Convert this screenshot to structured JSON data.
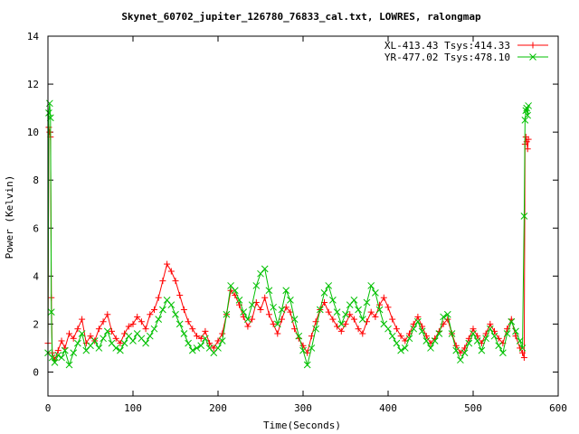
{
  "chart_data": {
    "type": "scatter",
    "title": "Skynet_60702_jupiter_126780_76833_cal.txt, LOWRES, ralongmap",
    "xlabel": "Time(Seconds)",
    "ylabel": "Power (Kelvin)",
    "xlim": [
      0,
      600
    ],
    "ylim": [
      -1,
      14
    ],
    "xticks": [
      "0",
      "100",
      "200",
      "300",
      "400",
      "500",
      "600"
    ],
    "yticks": [
      "0",
      "2",
      "4",
      "6",
      "8",
      "10",
      "12",
      "14"
    ],
    "xtick_values": [
      0,
      100,
      200,
      300,
      400,
      500,
      600
    ],
    "ytick_values": [
      0,
      2,
      4,
      6,
      8,
      10,
      12,
      14
    ],
    "grid": false,
    "legend_position": "top-right",
    "series": [
      {
        "name": "XL-413.43 Tsys:414.33",
        "marker": "plus",
        "color": "#ff0000",
        "x": [
          0,
          1,
          2,
          3,
          4,
          5,
          8,
          12,
          16,
          20,
          25,
          30,
          35,
          40,
          45,
          50,
          55,
          60,
          65,
          70,
          75,
          80,
          85,
          90,
          95,
          100,
          105,
          110,
          115,
          120,
          125,
          130,
          135,
          140,
          145,
          150,
          155,
          160,
          165,
          170,
          175,
          180,
          185,
          190,
          195,
          200,
          205,
          210,
          215,
          220,
          225,
          230,
          235,
          240,
          245,
          250,
          255,
          260,
          265,
          270,
          275,
          280,
          285,
          290,
          295,
          300,
          305,
          310,
          315,
          320,
          325,
          330,
          335,
          340,
          345,
          350,
          355,
          360,
          365,
          370,
          375,
          380,
          385,
          390,
          395,
          400,
          405,
          410,
          415,
          420,
          425,
          430,
          435,
          440,
          445,
          450,
          455,
          460,
          465,
          470,
          475,
          480,
          485,
          490,
          495,
          500,
          505,
          510,
          515,
          520,
          525,
          530,
          535,
          540,
          545,
          550,
          555,
          558,
          560,
          561,
          562,
          563,
          564,
          565
        ],
        "y": [
          1.2,
          10.2,
          10.0,
          9.8,
          3.1,
          0.8,
          0.5,
          0.9,
          1.3,
          1.0,
          1.6,
          1.4,
          1.8,
          2.2,
          1.2,
          1.5,
          1.3,
          1.8,
          2.1,
          2.4,
          1.7,
          1.4,
          1.2,
          1.6,
          1.9,
          2.0,
          2.3,
          2.1,
          1.8,
          2.4,
          2.6,
          3.1,
          3.8,
          4.5,
          4.2,
          3.8,
          3.2,
          2.6,
          2.1,
          1.8,
          1.5,
          1.4,
          1.7,
          1.2,
          1.0,
          1.3,
          1.6,
          2.4,
          3.4,
          3.2,
          2.8,
          2.3,
          1.9,
          2.2,
          2.9,
          2.6,
          3.1,
          2.4,
          2.0,
          1.6,
          2.2,
          2.7,
          2.5,
          1.8,
          1.4,
          1.1,
          0.8,
          1.5,
          2.1,
          2.6,
          2.9,
          2.5,
          2.2,
          1.9,
          1.7,
          2.0,
          2.4,
          2.2,
          1.8,
          1.6,
          2.1,
          2.5,
          2.3,
          2.8,
          3.1,
          2.7,
          2.2,
          1.8,
          1.5,
          1.3,
          1.6,
          2.0,
          2.3,
          1.9,
          1.5,
          1.2,
          1.4,
          1.7,
          2.0,
          2.2,
          1.6,
          1.1,
          0.8,
          1.0,
          1.4,
          1.8,
          1.5,
          1.2,
          1.6,
          2.0,
          1.7,
          1.4,
          1.2,
          1.8,
          2.2,
          1.5,
          1.0,
          0.8,
          0.6,
          9.5,
          9.8,
          9.6,
          9.3,
          9.7
        ]
      },
      {
        "name": "YR-477.02 Tsys:478.10",
        "marker": "cross",
        "color": "#00c000",
        "x": [
          0,
          1,
          2,
          3,
          4,
          5,
          8,
          12,
          16,
          20,
          25,
          30,
          35,
          40,
          45,
          50,
          55,
          60,
          65,
          70,
          75,
          80,
          85,
          90,
          95,
          100,
          105,
          110,
          115,
          120,
          125,
          130,
          135,
          140,
          145,
          150,
          155,
          160,
          165,
          170,
          175,
          180,
          185,
          190,
          195,
          200,
          205,
          210,
          215,
          220,
          225,
          230,
          235,
          240,
          245,
          250,
          255,
          260,
          265,
          270,
          275,
          280,
          285,
          290,
          295,
          300,
          305,
          310,
          315,
          320,
          325,
          330,
          335,
          340,
          345,
          350,
          355,
          360,
          365,
          370,
          375,
          380,
          385,
          390,
          395,
          400,
          405,
          410,
          415,
          420,
          425,
          430,
          435,
          440,
          445,
          450,
          455,
          460,
          465,
          470,
          475,
          480,
          485,
          490,
          495,
          500,
          505,
          510,
          515,
          520,
          525,
          530,
          535,
          540,
          545,
          550,
          555,
          558,
          560,
          561,
          562,
          563,
          564,
          565
        ],
        "y": [
          0.8,
          10.8,
          11.2,
          10.6,
          2.5,
          0.6,
          0.4,
          0.7,
          0.6,
          0.9,
          0.3,
          0.8,
          1.2,
          1.6,
          0.9,
          1.1,
          1.3,
          1.0,
          1.4,
          1.7,
          1.2,
          1.0,
          0.9,
          1.2,
          1.5,
          1.3,
          1.6,
          1.4,
          1.2,
          1.5,
          1.8,
          2.2,
          2.6,
          3.0,
          2.8,
          2.4,
          2.0,
          1.6,
          1.2,
          0.9,
          1.0,
          1.1,
          1.4,
          1.0,
          0.8,
          1.0,
          1.3,
          2.4,
          3.6,
          3.4,
          3.0,
          2.5,
          2.2,
          2.8,
          3.6,
          4.1,
          4.3,
          3.4,
          2.7,
          2.0,
          2.6,
          3.4,
          3.0,
          2.2,
          1.5,
          0.9,
          0.3,
          1.0,
          1.8,
          2.6,
          3.3,
          3.6,
          3.0,
          2.5,
          2.0,
          2.4,
          2.8,
          3.0,
          2.6,
          2.2,
          2.9,
          3.6,
          3.3,
          2.6,
          2.0,
          1.8,
          1.5,
          1.2,
          0.9,
          1.0,
          1.4,
          1.8,
          2.1,
          1.7,
          1.3,
          1.0,
          1.3,
          1.6,
          2.3,
          2.4,
          1.6,
          0.9,
          0.5,
          0.8,
          1.2,
          1.6,
          1.3,
          0.9,
          1.4,
          1.8,
          1.5,
          1.1,
          0.8,
          1.6,
          2.1,
          1.7,
          1.3,
          1.0,
          6.5,
          10.5,
          10.9,
          11.0,
          10.7,
          11.1
        ]
      }
    ]
  }
}
